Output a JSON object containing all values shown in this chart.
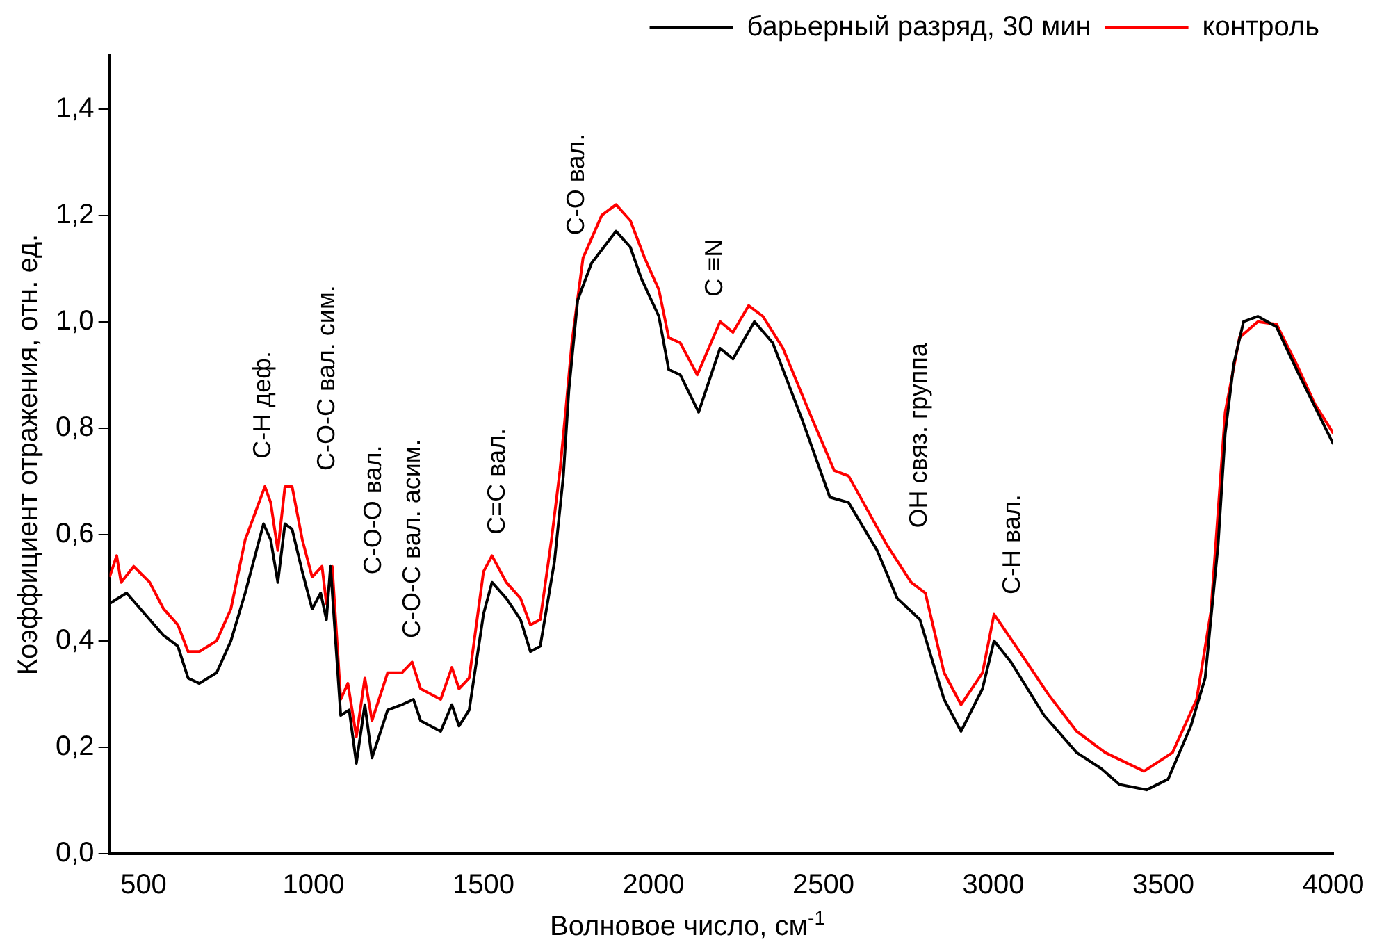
{
  "chart_data": {
    "type": "line",
    "xlabel": "Волновое число, см$^{-1}$",
    "ylabel": "Коэффициент отражения, отн. ед.",
    "xlim": [
      400,
      4000
    ],
    "xticks": [
      500,
      1000,
      1500,
      2000,
      2500,
      3000,
      3500,
      4000
    ],
    "ylim": [
      0,
      1.5
    ],
    "yticks": [
      {
        "value": 0,
        "label": "0,0"
      },
      {
        "value": 0.2,
        "label": "0,2"
      },
      {
        "value": 0.4,
        "label": "0,4"
      },
      {
        "value": 0.6,
        "label": "0,6"
      },
      {
        "value": 0.8,
        "label": "0,8"
      },
      {
        "value": 1.0,
        "label": "1,0"
      },
      {
        "value": 1.2,
        "label": "1,2"
      },
      {
        "value": 1.4,
        "label": "1,4"
      }
    ],
    "grid": false,
    "legend": "top right",
    "marker": "none",
    "line_style": "solid",
    "series": [
      {
        "name": "барьерный разряд, 30 мин",
        "color": "#000000",
        "x": [
          400,
          450,
          518,
          559,
          601,
          631,
          664,
          715,
          757,
          799,
          828,
          853,
          874,
          895,
          916,
          937,
          967,
          996,
          1021,
          1038,
          1050,
          1080,
          1105,
          1126,
          1151,
          1172,
          1218,
          1260,
          1294,
          1315,
          1374,
          1407,
          1428,
          1458,
          1500,
          1525,
          1567,
          1609,
          1638,
          1667,
          1709,
          1735,
          1751,
          1777,
          1818,
          1890,
          1932,
          1965,
          2016,
          2045,
          2079,
          2133,
          2196,
          2234,
          2297,
          2351,
          2435,
          2519,
          2574,
          2658,
          2717,
          2784,
          2855,
          2905,
          2968,
          3002,
          3052,
          3149,
          3245,
          3317,
          3371,
          3451,
          3514,
          3581,
          3623,
          3661,
          3682,
          3707,
          3736,
          3778,
          3833,
          3892,
          3946,
          4000
        ],
        "values": [
          0.47,
          0.49,
          0.44,
          0.41,
          0.39,
          0.33,
          0.32,
          0.34,
          0.4,
          0.49,
          0.56,
          0.62,
          0.59,
          0.51,
          0.62,
          0.61,
          0.53,
          0.46,
          0.49,
          0.44,
          0.54,
          0.26,
          0.27,
          0.17,
          0.28,
          0.18,
          0.27,
          0.28,
          0.29,
          0.25,
          0.23,
          0.28,
          0.24,
          0.27,
          0.45,
          0.51,
          0.48,
          0.44,
          0.38,
          0.39,
          0.55,
          0.71,
          0.87,
          1.04,
          1.11,
          1.17,
          1.14,
          1.08,
          1.01,
          0.91,
          0.9,
          0.83,
          0.95,
          0.93,
          1.0,
          0.96,
          0.82,
          0.67,
          0.66,
          0.57,
          0.48,
          0.44,
          0.29,
          0.23,
          0.31,
          0.4,
          0.36,
          0.26,
          0.19,
          0.16,
          0.13,
          0.12,
          0.14,
          0.24,
          0.33,
          0.58,
          0.79,
          0.92,
          1.0,
          1.01,
          0.99,
          0.91,
          0.84,
          0.77
        ]
      },
      {
        "name": "контроль",
        "color": "#ff0000",
        "x": [
          400,
          421,
          434,
          471,
          518,
          559,
          601,
          631,
          664,
          715,
          757,
          799,
          828,
          857,
          874,
          895,
          916,
          937,
          967,
          996,
          1025,
          1038,
          1055,
          1080,
          1101,
          1126,
          1151,
          1172,
          1218,
          1260,
          1290,
          1315,
          1374,
          1407,
          1428,
          1458,
          1500,
          1525,
          1567,
          1609,
          1638,
          1667,
          1700,
          1725,
          1743,
          1760,
          1793,
          1848,
          1890,
          1932,
          1974,
          2016,
          2045,
          2079,
          2129,
          2196,
          2234,
          2280,
          2322,
          2381,
          2465,
          2532,
          2574,
          2687,
          2758,
          2800,
          2855,
          2905,
          2968,
          3002,
          3077,
          3161,
          3245,
          3329,
          3443,
          3527,
          3598,
          3640,
          3682,
          3724,
          3778,
          3833,
          3892,
          3946,
          4000
        ],
        "values": [
          0.52,
          0.56,
          0.51,
          0.54,
          0.51,
          0.46,
          0.43,
          0.38,
          0.38,
          0.4,
          0.46,
          0.59,
          0.64,
          0.69,
          0.66,
          0.57,
          0.69,
          0.69,
          0.59,
          0.52,
          0.54,
          0.47,
          0.54,
          0.29,
          0.32,
          0.22,
          0.33,
          0.25,
          0.34,
          0.34,
          0.36,
          0.31,
          0.29,
          0.35,
          0.31,
          0.33,
          0.53,
          0.56,
          0.51,
          0.48,
          0.43,
          0.44,
          0.59,
          0.72,
          0.84,
          0.96,
          1.12,
          1.2,
          1.22,
          1.19,
          1.12,
          1.06,
          0.97,
          0.96,
          0.9,
          1.0,
          0.98,
          1.03,
          1.01,
          0.95,
          0.82,
          0.72,
          0.71,
          0.58,
          0.51,
          0.49,
          0.34,
          0.28,
          0.34,
          0.45,
          0.38,
          0.3,
          0.23,
          0.19,
          0.155,
          0.19,
          0.29,
          0.455,
          0.83,
          0.97,
          1.0,
          0.995,
          0.92,
          0.845,
          0.79
        ]
      }
    ],
    "annotations": [
      "C-H деф.",
      "C-O-C вал. сим.",
      "C-O-O вал.",
      "C-O-C вал. асим.",
      "C=C вал.",
      "C-O вал.",
      "C ≡N",
      "OH связ. группа",
      "C-H вал."
    ]
  }
}
